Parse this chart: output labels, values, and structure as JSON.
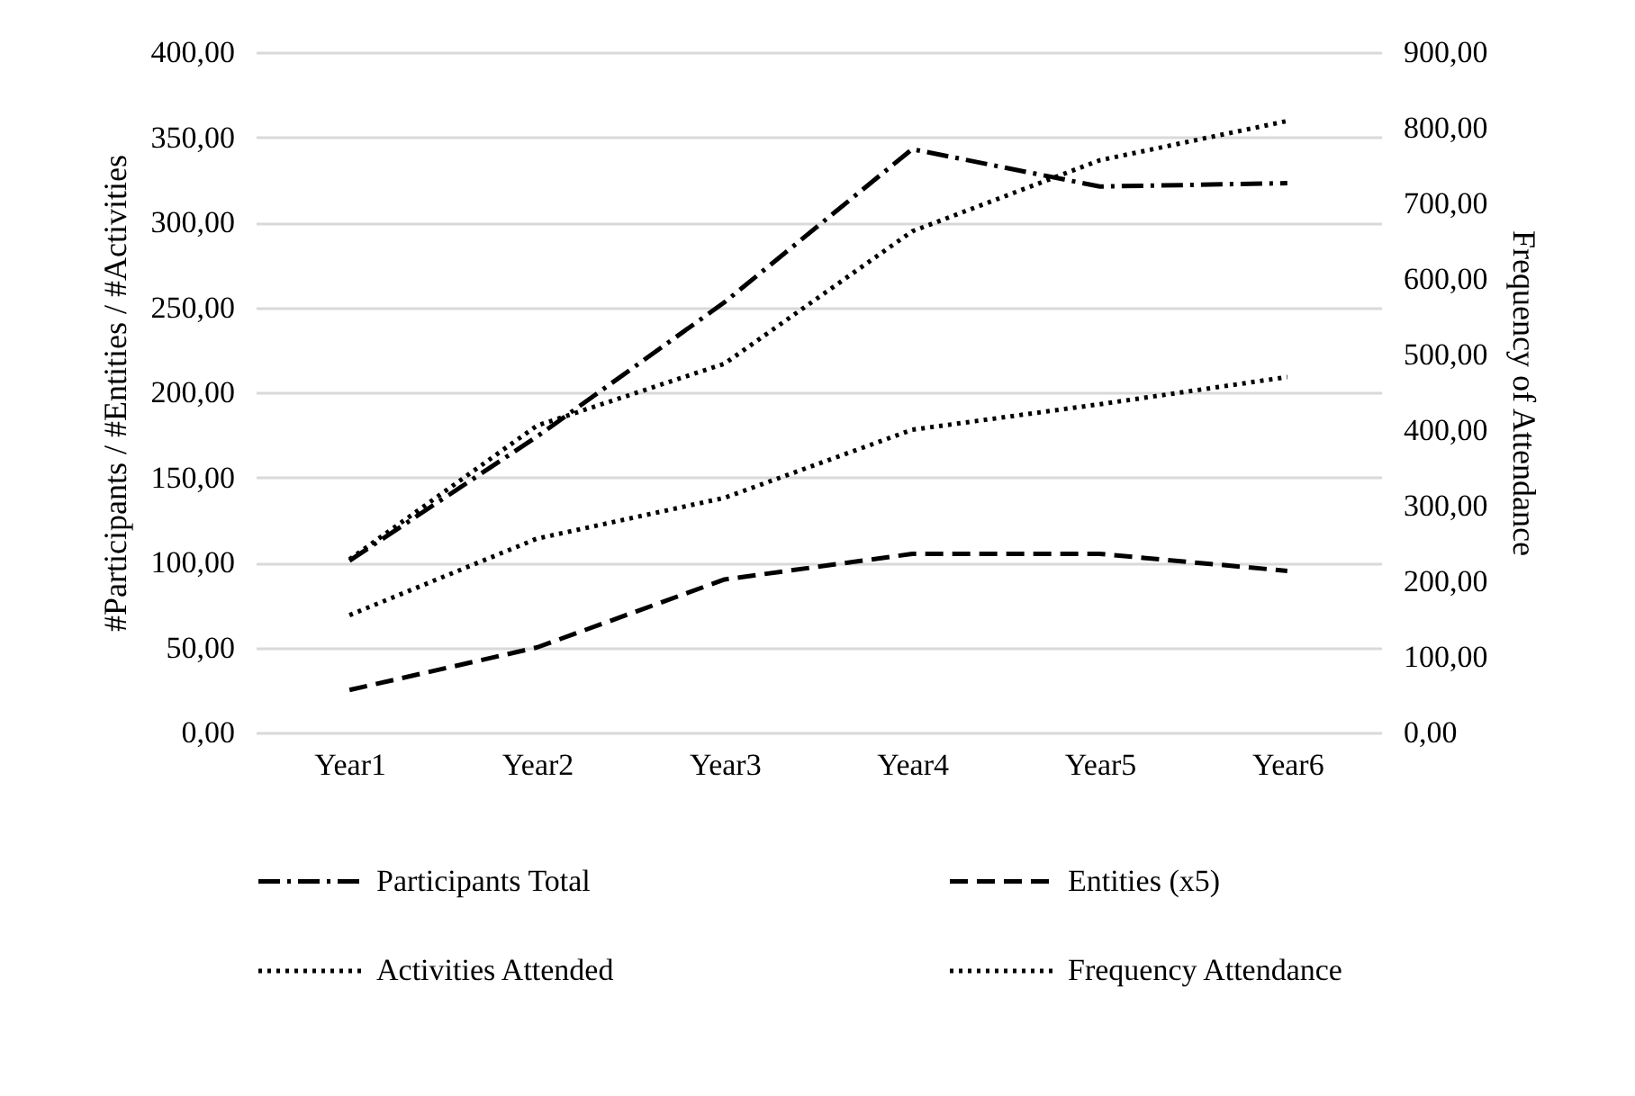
{
  "chart_data": {
    "type": "line",
    "ylabel": "#Participants / #Entities / #Activities",
    "y2label": "Frequency of Attendance",
    "categories": [
      "Year1",
      "Year2",
      "Year3",
      "Year4",
      "Year5",
      "Year6"
    ],
    "series": [
      {
        "name": "Participants Total",
        "color": "#000000",
        "line_style": "dashdot",
        "values": [
          101,
          174,
          253,
          343,
          321,
          323
        ]
      },
      {
        "name": "Entities (x5)",
        "color": "#000000",
        "line_style": "dashed",
        "values": [
          25,
          50,
          90,
          105,
          105,
          95
        ]
      },
      {
        "name": "Activities Attended",
        "color": "#000000",
        "line_style": "dotted",
        "values": [
          69,
          114,
          138,
          178,
          193,
          209
        ]
      },
      {
        "name": "Frequency Attendance",
        "color": "#000000",
        "line_style": "dotted",
        "axis": "y2",
        "values": [
          229,
          406,
          488,
          663,
          757,
          809
        ]
      }
    ],
    "ylim": [
      0,
      400
    ],
    "yticks": [
      {
        "value": 0,
        "label": "0,00"
      },
      {
        "value": 50,
        "label": "50,00"
      },
      {
        "value": 100,
        "label": "100,00"
      },
      {
        "value": 150,
        "label": "150,00"
      },
      {
        "value": 200,
        "label": "200,00"
      },
      {
        "value": 250,
        "label": "250,00"
      },
      {
        "value": 300,
        "label": "300,00"
      },
      {
        "value": 350,
        "label": "350,00"
      },
      {
        "value": 400,
        "label": "400,00"
      }
    ],
    "y2lim": [
      0,
      900
    ],
    "y2ticks": [
      {
        "value": 0,
        "label": "0,00"
      },
      {
        "value": 100,
        "label": "100,00"
      },
      {
        "value": 200,
        "label": "200,00"
      },
      {
        "value": 300,
        "label": "300,00"
      },
      {
        "value": 400,
        "label": "400,00"
      },
      {
        "value": 500,
        "label": "500,00"
      },
      {
        "value": 600,
        "label": "600,00"
      },
      {
        "value": 700,
        "label": "700,00"
      },
      {
        "value": 800,
        "label": "800,00"
      },
      {
        "value": 900,
        "label": "900,00"
      }
    ],
    "grid": "y",
    "legend": "bottom"
  }
}
